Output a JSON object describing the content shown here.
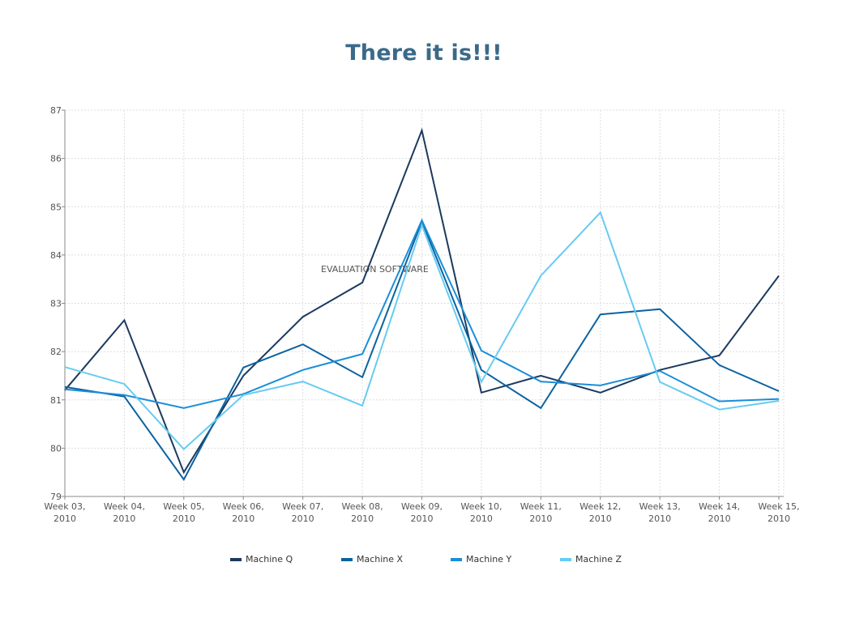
{
  "chart_data": {
    "type": "line",
    "title": "There it is!!!",
    "watermark": "EVALUATION SOFTWARE",
    "categories": [
      "Week 03, 2010",
      "Week 04, 2010",
      "Week 05, 2010",
      "Week 06, 2010",
      "Week 07, 2010",
      "Week 08, 2010",
      "Week 09, 2010",
      "Week 10, 2010",
      "Week 11, 2010",
      "Week 12, 2010",
      "Week 13, 2010",
      "Week 14, 2010",
      "Week 15, 2010"
    ],
    "ylim": [
      79,
      87
    ],
    "yticks": [
      "79",
      "80",
      "81",
      "82",
      "83",
      "84",
      "85",
      "86",
      "87"
    ],
    "grid": true,
    "legend": "bottom",
    "series": [
      {
        "name": "Machine Q",
        "color": "#1b3a5e",
        "values": [
          81.2,
          82.65,
          79.5,
          81.5,
          82.72,
          83.43,
          86.58,
          81.15,
          81.5,
          81.15,
          81.62,
          81.92,
          83.57
        ]
      },
      {
        "name": "Machine X",
        "color": "#0c62a0",
        "values": [
          81.27,
          81.07,
          79.35,
          81.67,
          82.15,
          81.47,
          84.7,
          81.62,
          80.83,
          82.77,
          82.88,
          81.72,
          81.18
        ]
      },
      {
        "name": "Machine Y",
        "color": "#1a8ed8",
        "values": [
          81.22,
          81.1,
          80.83,
          81.12,
          81.62,
          81.95,
          84.72,
          82.02,
          81.38,
          81.3,
          81.6,
          80.97,
          81.02
        ]
      },
      {
        "name": "Machine Z",
        "color": "#66cbf2",
        "values": [
          81.68,
          81.33,
          79.98,
          81.1,
          81.38,
          80.88,
          84.62,
          81.37,
          83.57,
          84.88,
          81.37,
          80.8,
          80.98
        ]
      }
    ]
  }
}
